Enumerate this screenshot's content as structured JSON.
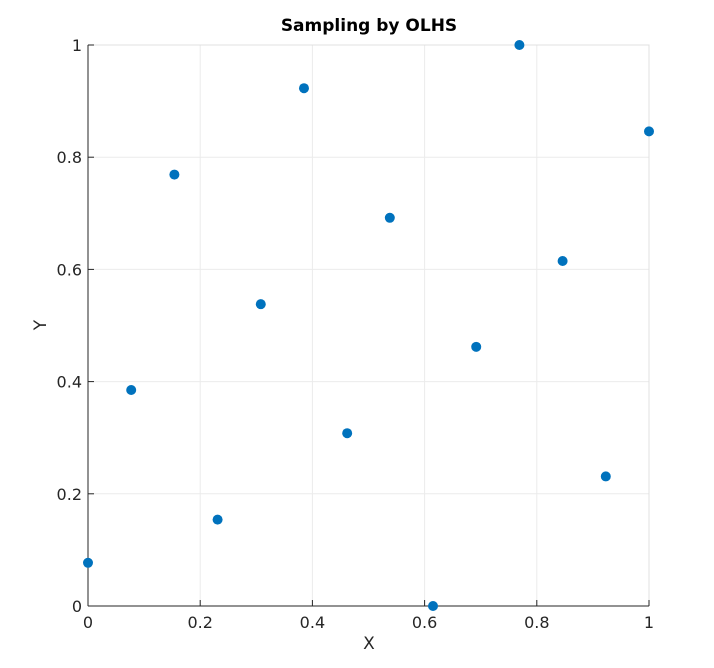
{
  "chart_data": {
    "type": "scatter",
    "title": "Sampling by OLHS",
    "xlabel": "X",
    "ylabel": "Y",
    "xlim": [
      0,
      1
    ],
    "ylim": [
      0,
      1
    ],
    "xticks": [
      "0",
      "0.2",
      "0.4",
      "0.6",
      "0.8",
      "1"
    ],
    "yticks": [
      "0",
      "0.2",
      "0.4",
      "0.6",
      "0.8",
      "1"
    ],
    "grid": true,
    "marker_color": "#0072BD",
    "points": [
      {
        "x": 0.0,
        "y": 0.077
      },
      {
        "x": 0.077,
        "y": 0.385
      },
      {
        "x": 0.154,
        "y": 0.769
      },
      {
        "x": 0.231,
        "y": 0.154
      },
      {
        "x": 0.308,
        "y": 0.538
      },
      {
        "x": 0.385,
        "y": 0.923
      },
      {
        "x": 0.462,
        "y": 0.308
      },
      {
        "x": 0.538,
        "y": 0.692
      },
      {
        "x": 0.615,
        "y": 0.0
      },
      {
        "x": 0.692,
        "y": 0.462
      },
      {
        "x": 0.769,
        "y": 1.0
      },
      {
        "x": 0.846,
        "y": 0.615
      },
      {
        "x": 0.923,
        "y": 0.231
      },
      {
        "x": 1.0,
        "y": 0.846
      }
    ]
  }
}
